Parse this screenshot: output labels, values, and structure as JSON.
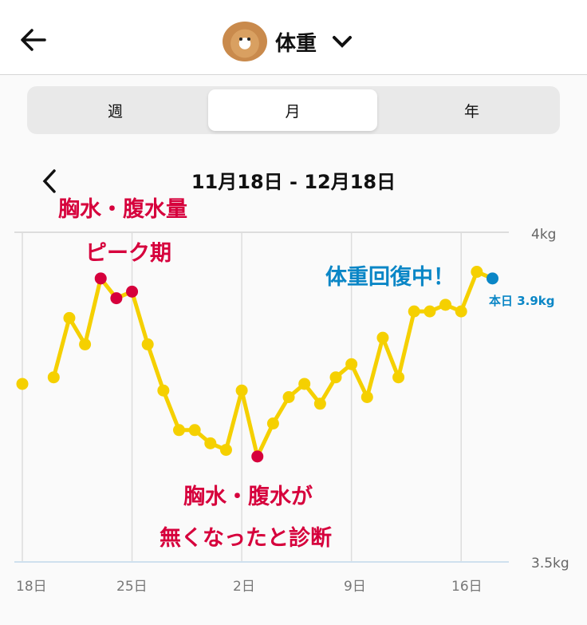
{
  "header": {
    "title": "体重",
    "back_icon": "arrow-left-icon",
    "dropdown_icon": "chevron-down-icon",
    "avatar": "cat-avatar"
  },
  "tabs": [
    {
      "label": "週",
      "active": false
    },
    {
      "label": "月",
      "active": true
    },
    {
      "label": "年",
      "active": false
    }
  ],
  "range": {
    "label": "11月18日 - 12月18日",
    "prev_icon": "chevron-left-icon"
  },
  "annotations": {
    "peak_line1": "胸水・腹水量",
    "peak_line2": "ピーク期",
    "recovery": "体重回復中！",
    "today": "本日 3.9kg",
    "diag_line1": "胸水・腹水が",
    "diag_line2": "無くなったと診断"
  },
  "colors": {
    "line": "#f5d000",
    "highlight": "#d6003c",
    "today": "#0a86c6"
  },
  "chart_data": {
    "type": "line",
    "x": [
      "11/18",
      "11/19",
      "11/20",
      "11/21",
      "11/22",
      "11/23",
      "11/24",
      "11/25",
      "11/26",
      "11/27",
      "11/28",
      "11/29",
      "11/30",
      "12/1",
      "12/2",
      "12/3",
      "12/4",
      "12/5",
      "12/6",
      "12/7",
      "12/8",
      "12/9",
      "12/10",
      "12/11",
      "12/12",
      "12/13",
      "12/14",
      "12/15",
      "12/16",
      "12/17",
      "12/18"
    ],
    "values": [
      3.77,
      null,
      3.78,
      3.87,
      3.83,
      3.93,
      3.9,
      3.91,
      3.83,
      3.76,
      3.7,
      3.7,
      3.68,
      3.67,
      3.76,
      3.66,
      3.71,
      3.75,
      3.77,
      3.74,
      3.78,
      3.8,
      3.75,
      3.84,
      3.78,
      3.88,
      3.88,
      3.89,
      3.88,
      3.94,
      3.93
    ],
    "highlight_points": [
      "11/23",
      "11/24",
      "11/25",
      "12/3"
    ],
    "today_point": "12/18",
    "ylim": [
      3.5,
      4.0
    ],
    "yticks": [
      "4kg",
      "3.5kg"
    ],
    "xticks": [
      "18日",
      "25日",
      "2日",
      "9日",
      "16日"
    ],
    "grid": "vertical at ticks"
  }
}
